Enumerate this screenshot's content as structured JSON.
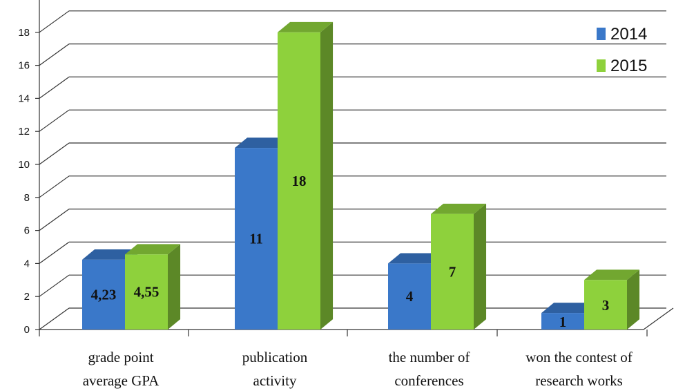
{
  "chart_data": {
    "type": "bar",
    "categories": [
      [
        "grade point",
        "average GPA"
      ],
      [
        "publication",
        "activity"
      ],
      [
        "the number of",
        "conferences"
      ],
      [
        "won the contest of",
        "research works"
      ]
    ],
    "series": [
      {
        "name": "2014",
        "values": [
          4.23,
          11,
          4,
          1
        ],
        "labels": [
          "4,23",
          "11",
          "4",
          "1"
        ],
        "color": "#3a78c9"
      },
      {
        "name": "2015",
        "values": [
          4.55,
          18,
          7,
          3
        ],
        "labels": [
          "4,55",
          "18",
          "7",
          "3"
        ],
        "color": "#8ed13c"
      }
    ],
    "yticks": [
      0,
      2,
      4,
      6,
      8,
      10,
      12,
      14,
      16,
      18
    ],
    "ylim": [
      0,
      20
    ],
    "grid": true,
    "legend_position": "top-right",
    "style": "3d-clustered-bar"
  }
}
